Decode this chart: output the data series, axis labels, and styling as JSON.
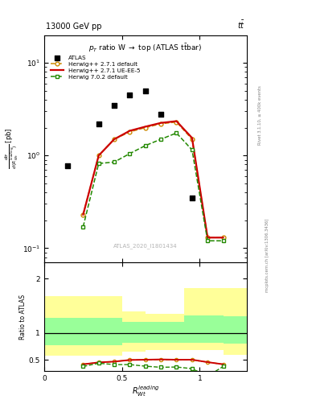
{
  "title_top_left": "13000 GeV pp",
  "title_top_right": "tt̅",
  "plot_title": "p_{T} ratio W → top (ATLAS t̅tbar)",
  "watermark": "ATLAS_2020_I1801434",
  "right_label_top": "Rivet 3.1.10, ≥ 400k events",
  "right_label_bottom": "mcplots.cern.ch [arXiv:1306.3436]",
  "x_atlas": [
    0.15,
    0.35,
    0.45,
    0.55,
    0.65,
    0.75,
    0.95
  ],
  "y_atlas": [
    0.78,
    2.2,
    3.5,
    4.5,
    5.0,
    2.8,
    0.35
  ],
  "x_hw271_def": [
    0.25,
    0.35,
    0.45,
    0.55,
    0.65,
    0.75,
    0.85,
    0.95,
    1.05,
    1.15
  ],
  "y_hw271_def": [
    0.23,
    1.0,
    1.5,
    1.8,
    2.0,
    2.2,
    2.3,
    1.5,
    0.13,
    0.13
  ],
  "x_hw271_ue": [
    0.25,
    0.35,
    0.45,
    0.55,
    0.65,
    0.75,
    0.85,
    0.95,
    1.05,
    1.15
  ],
  "y_hw271_ue": [
    0.23,
    1.0,
    1.5,
    1.85,
    2.05,
    2.25,
    2.35,
    1.55,
    0.13,
    0.13
  ],
  "x_hw702_def": [
    0.25,
    0.35,
    0.45,
    0.55,
    0.65,
    0.75,
    0.85,
    0.95,
    1.05,
    1.15
  ],
  "y_hw702_def": [
    0.17,
    0.82,
    0.85,
    1.05,
    1.28,
    1.5,
    1.75,
    1.15,
    0.12,
    0.12
  ],
  "ratio_x": [
    0.25,
    0.35,
    0.45,
    0.55,
    0.65,
    0.75,
    0.85,
    0.95,
    1.05,
    1.15
  ],
  "ratio_hw271_def": [
    0.42,
    0.455,
    0.47,
    0.5,
    0.5,
    0.505,
    0.5,
    0.5,
    0.46,
    0.42
  ],
  "ratio_hw271_ue": [
    0.42,
    0.455,
    0.47,
    0.5,
    0.505,
    0.51,
    0.505,
    0.505,
    0.46,
    0.42
  ],
  "ratio_hw702_def": [
    0.38,
    0.44,
    0.415,
    0.415,
    0.385,
    0.365,
    0.37,
    0.34,
    0.2,
    0.38
  ],
  "band_x_edges": [
    0.0,
    0.3,
    0.5,
    0.65,
    0.9,
    1.15,
    1.3
  ],
  "band_yellow_lo": [
    0.58,
    0.58,
    0.65,
    0.68,
    0.68,
    0.6,
    0.6
  ],
  "band_yellow_hi": [
    1.68,
    1.68,
    1.4,
    1.35,
    1.82,
    1.82,
    1.82
  ],
  "band_green_lo": [
    0.77,
    0.77,
    0.82,
    0.82,
    0.82,
    0.8,
    0.8
  ],
  "band_green_hi": [
    1.28,
    1.28,
    1.2,
    1.2,
    1.32,
    1.3,
    1.3
  ],
  "xlim": [
    0,
    1.3
  ],
  "ylim_main": [
    0.07,
    20
  ],
  "ylim_ratio": [
    0.3,
    2.3
  ],
  "color_atlas": "#000000",
  "color_hw271_def": "#cc8800",
  "color_hw271_ue": "#cc0000",
  "color_hw702_def": "#228800",
  "color_yellow": "#ffff99",
  "color_green": "#99ff99"
}
